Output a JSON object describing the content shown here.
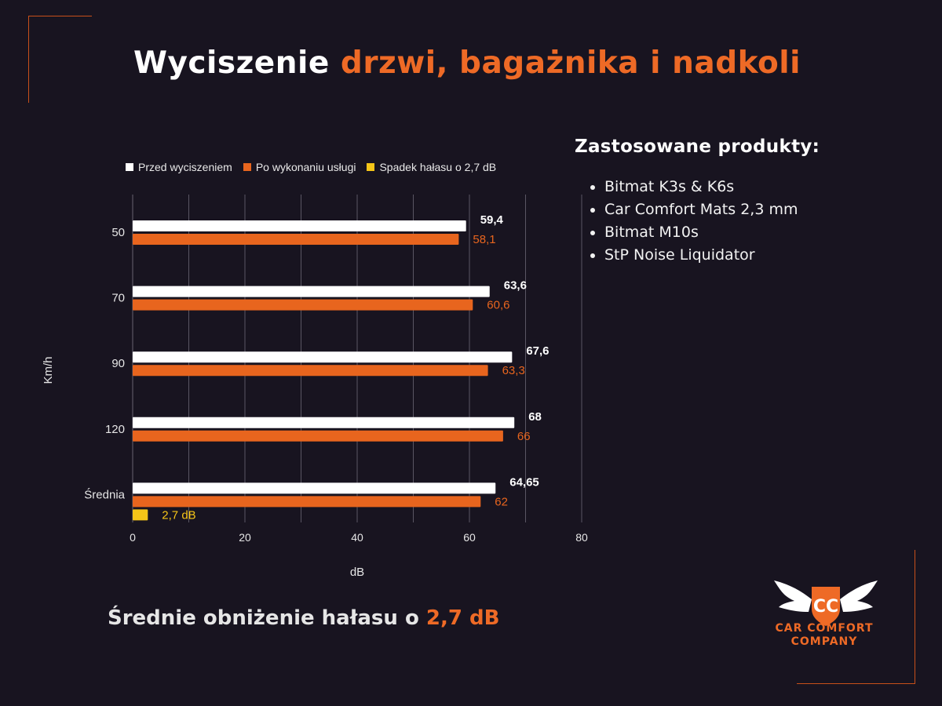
{
  "title": {
    "prefix": "Wyciszenie",
    "accent": "drzwi, bagażnika i nadkoli"
  },
  "products": {
    "heading": "Zastosowane produkty:",
    "items": [
      "Bitmat K3s & K6s",
      "Car Comfort Mats 2,3 mm",
      "Bitmat M10s",
      "StP Noise Liquidator"
    ]
  },
  "summary": {
    "prefix": "Średnie obniżenie hałasu o",
    "accent": "2,7 dB"
  },
  "logo": {
    "line1": "CAR COMFORT",
    "line2": "COMPANY",
    "monogram": "CC"
  },
  "colors": {
    "background": "#181420",
    "before": "#ffffff",
    "after": "#e8651e",
    "drop": "#f5c518",
    "accent": "#ee6a26"
  },
  "chart_data": {
    "type": "bar",
    "orientation": "horizontal",
    "categories": [
      "50",
      "70",
      "90",
      "120",
      "Średnia"
    ],
    "series": [
      {
        "name": "Przed wyciszeniem",
        "values": [
          59.4,
          63.6,
          67.6,
          68,
          64.65
        ],
        "labels": [
          "59,4",
          "63,6",
          "67,6",
          "68",
          "64,65"
        ],
        "color": "#ffffff"
      },
      {
        "name": "Po wykonaniu usługi",
        "values": [
          58.1,
          60.6,
          63.3,
          66,
          62
        ],
        "labels": [
          "58,1",
          "60,6",
          "63,3",
          "66",
          "62"
        ],
        "color": "#e8651e"
      },
      {
        "name": "Spadek hałasu o 2,7 dB",
        "values": [
          null,
          null,
          null,
          null,
          2.7
        ],
        "labels": [
          "",
          "",
          "",
          "",
          "2,7 dB"
        ],
        "color": "#f5c518"
      }
    ],
    "xlabel": "dB",
    "ylabel": "Km/h",
    "xlim": [
      0,
      80
    ],
    "xticks": [
      "0",
      "20",
      "40",
      "60",
      "80"
    ],
    "grid": true,
    "legend": "top-left"
  }
}
